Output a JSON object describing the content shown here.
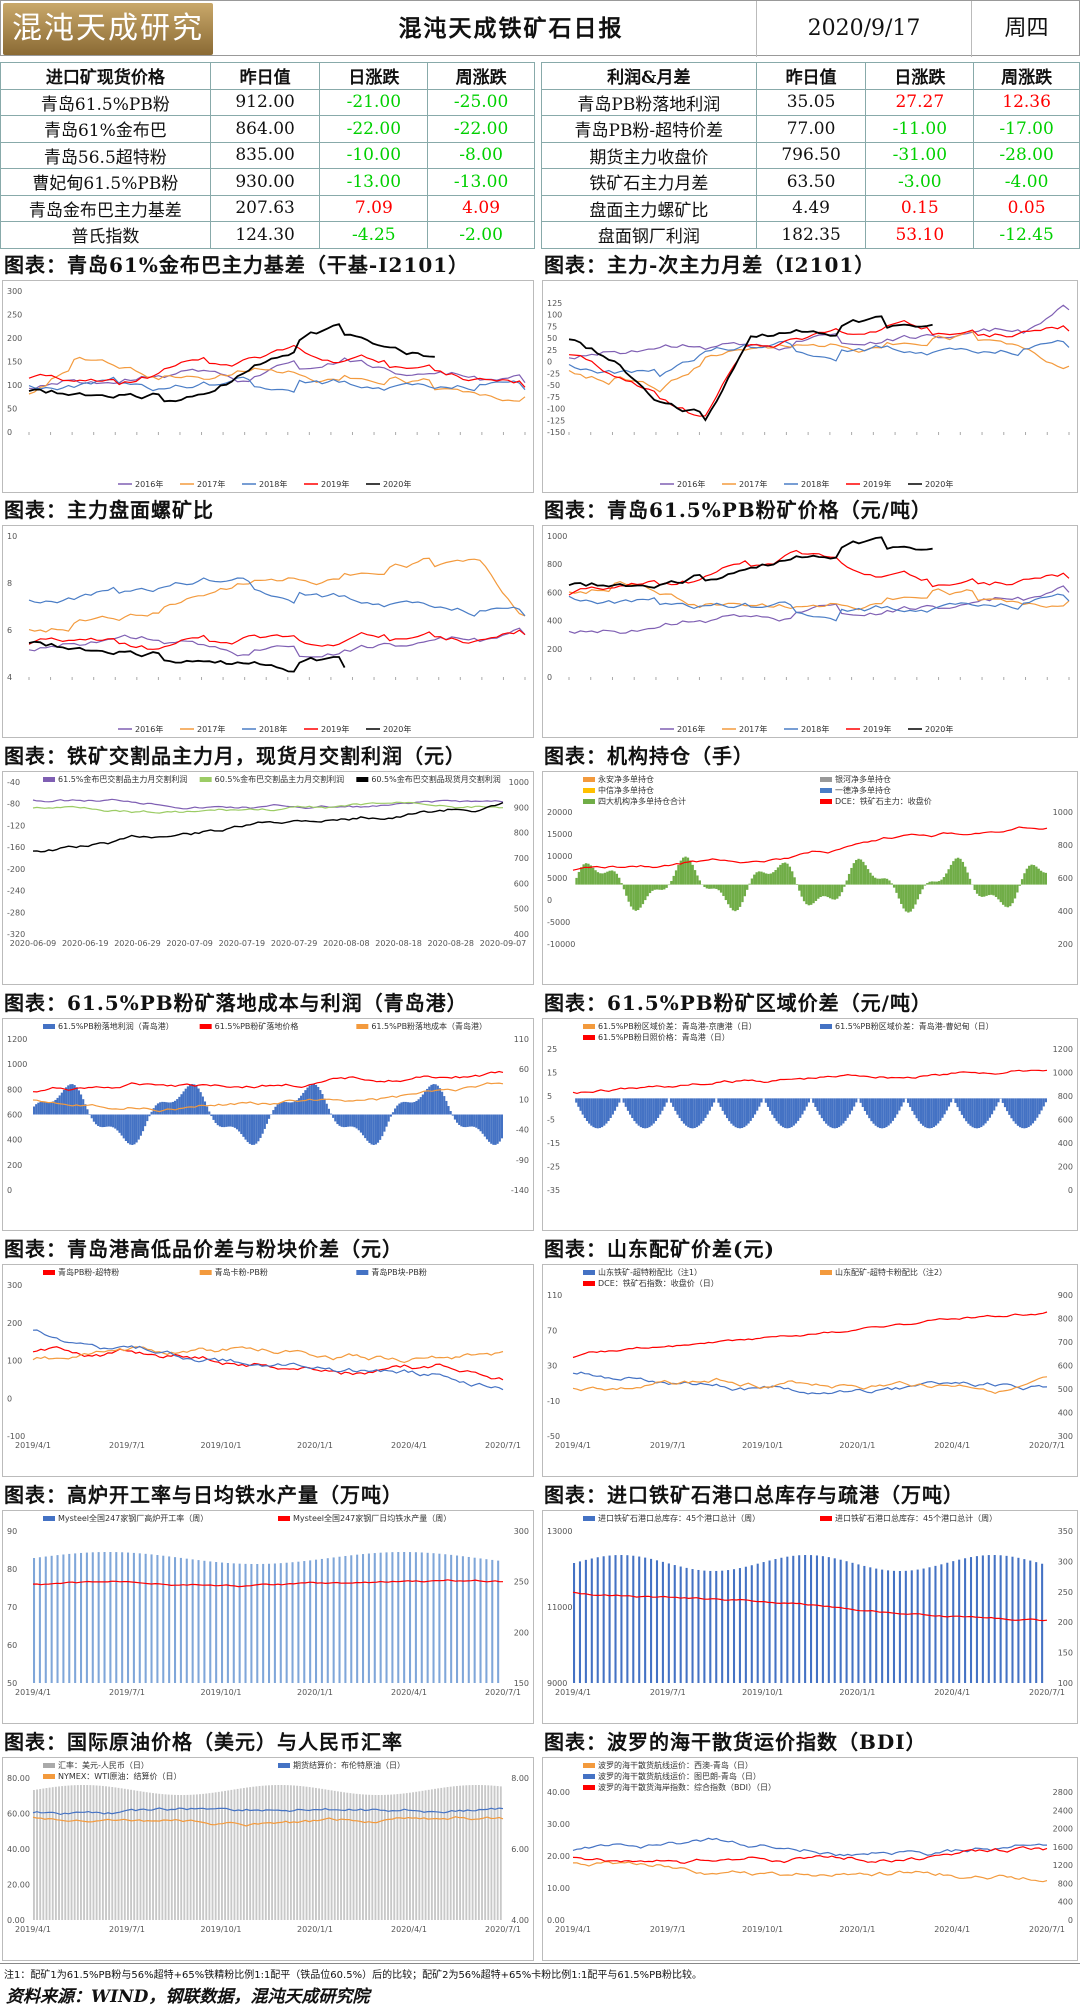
{
  "header": {
    "logo_text": "混沌天成研究院",
    "title": "混沌天成铁矿石日报",
    "date": "2020/9/17",
    "weekday": "周四"
  },
  "left_table": {
    "headers": [
      "进口矿现货价格",
      "昨日值",
      "日涨跌",
      "周涨跌"
    ],
    "rows": [
      {
        "name": "青岛61.5%PB粉",
        "value": "912.00",
        "d": "-21.00",
        "w": "-25.00",
        "ds": "neg",
        "ws": "neg"
      },
      {
        "name": "青岛61%金布巴",
        "value": "864.00",
        "d": "-22.00",
        "w": "-22.00",
        "ds": "neg",
        "ws": "neg"
      },
      {
        "name": "青岛56.5超特粉",
        "value": "835.00",
        "d": "-10.00",
        "w": "-8.00",
        "ds": "neg",
        "ws": "neg"
      },
      {
        "name": "曹妃甸61.5%PB粉",
        "value": "930.00",
        "d": "-13.00",
        "w": "-13.00",
        "ds": "neg",
        "ws": "neg"
      },
      {
        "name": "青岛金布巴主力基差",
        "value": "207.63",
        "d": "7.09",
        "w": "4.09",
        "ds": "pos",
        "ws": "pos"
      },
      {
        "name": "普氏指数",
        "value": "124.30",
        "d": "-4.25",
        "w": "-2.00",
        "ds": "neg",
        "ws": "neg"
      }
    ]
  },
  "right_table": {
    "headers": [
      "利润&月差",
      "昨日值",
      "日涨跌",
      "周涨跌"
    ],
    "rows": [
      {
        "name": "青岛PB粉落地利润",
        "value": "35.05",
        "d": "27.27",
        "w": "12.36",
        "ds": "pos",
        "ws": "pos"
      },
      {
        "name": "青岛PB粉-超特价差",
        "value": "77.00",
        "d": "-11.00",
        "w": "-17.00",
        "ds": "neg",
        "ws": "neg"
      },
      {
        "name": "期货主力收盘价",
        "value": "796.50",
        "d": "-31.00",
        "w": "-28.00",
        "ds": "neg",
        "ws": "neg"
      },
      {
        "name": "铁矿石主力月差",
        "value": "63.50",
        "d": "-3.00",
        "w": "-4.00",
        "ds": "neg",
        "ws": "neg"
      },
      {
        "name": "盘面主力螺矿比",
        "value": "4.49",
        "d": "0.15",
        "w": "0.05",
        "ds": "pos",
        "ws": "pos"
      },
      {
        "name": "盘面钢厂利润",
        "value": "182.35",
        "d": "53.10",
        "w": "-12.45",
        "ds": "pos",
        "ws": "neg"
      }
    ]
  },
  "sections": [
    {
      "title": "图表：青岛61%金布巴主力基差（干基-I2101）"
    },
    {
      "title": "图表：主力-次主力月差（I2101）"
    },
    {
      "title": "图表：主力盘面螺矿比"
    },
    {
      "title": "图表：青岛61.5%PB粉矿价格（元/吨）"
    },
    {
      "title": "图表：铁矿交割品主力月，现货月交割利润（元）"
    },
    {
      "title": "图表：机构持仓（手）"
    },
    {
      "title": "图表：61.5%PB粉矿落地成本与利润（青岛港）"
    },
    {
      "title": "图表：61.5%PB粉矿区域价差（元/吨）"
    },
    {
      "title": "图表：青岛港高低品价差与粉块价差（元）"
    },
    {
      "title": "图表：山东配矿价差(元)"
    },
    {
      "title": "图表：高炉开工率与日均铁水产量（万吨）"
    },
    {
      "title": "图表：进口铁矿石港口总库存与疏港（万吨）"
    },
    {
      "title": "图表：国际原油价格（美元）与人民币汇率"
    },
    {
      "title": "图表：波罗的海干散货运价指数（BDI）"
    }
  ],
  "colors": {
    "neg": "#00d000",
    "pos": "#ff0000",
    "y2016": "#7f5fb3",
    "y2017": "#f39a3d",
    "y2018": "#4a7dc6",
    "y2019": "#ff0000",
    "y2020": "#000000"
  },
  "chart_data": [
    {
      "type": "line",
      "title": "",
      "ylim": [
        0,
        300
      ],
      "yticks": [
        "0",
        "50",
        "100",
        "150",
        "200",
        "250",
        "300"
      ],
      "series": [
        {
          "name": "2016年",
          "values": [
            95,
            110,
            100,
            120,
            130,
            115,
            140,
            160,
            130,
            120,
            115,
            105
          ]
        },
        {
          "name": "2017年",
          "values": [
            80,
            150,
            140,
            120,
            110,
            130,
            125,
            120,
            110,
            95,
            80,
            75
          ]
        },
        {
          "name": "2018年",
          "values": [
            95,
            100,
            105,
            90,
            95,
            100,
            110,
            105,
            100,
            95,
            100,
            90
          ]
        },
        {
          "name": "2019年",
          "values": [
            120,
            110,
            100,
            130,
            150,
            160,
            175,
            145,
            140,
            130,
            110,
            95
          ]
        },
        {
          "name": "2020年",
          "values": [
            90,
            80,
            75,
            70,
            85,
            140,
            190,
            210,
            180,
            160
          ]
        }
      ]
    },
    {
      "type": "line",
      "title": "",
      "ylim": [
        -150,
        150
      ],
      "yticks": [
        "-150",
        "-125",
        "-100",
        "-75",
        "-50",
        "-25",
        "0",
        "25",
        "50",
        "75",
        "100",
        "125"
      ],
      "series": [
        {
          "name": "2016年",
          "values": [
            10,
            20,
            25,
            30,
            35,
            40,
            45,
            50,
            55,
            60,
            65,
            110
          ]
        },
        {
          "name": "2017年",
          "values": [
            -20,
            -40,
            -60,
            10,
            25,
            30,
            35,
            40,
            45,
            50,
            30,
            -10
          ]
        },
        {
          "name": "2018年",
          "values": [
            -10,
            -20,
            -30,
            20,
            25,
            25,
            25,
            30,
            25,
            20,
            25,
            30
          ]
        },
        {
          "name": "2019年",
          "values": [
            20,
            -30,
            -80,
            -120,
            40,
            50,
            60,
            70,
            60,
            55,
            60,
            65
          ]
        },
        {
          "name": "2020年",
          "values": [
            50,
            0,
            -90,
            -120,
            55,
            65,
            70,
            75,
            78
          ]
        }
      ]
    },
    {
      "type": "line",
      "title": "",
      "ylim": [
        4,
        10
      ],
      "yticks": [
        "4",
        "6",
        "8",
        "10"
      ],
      "series": [
        {
          "name": "2016年",
          "values": [
            5.2,
            5.4,
            5.6,
            5.5,
            5.3,
            5.1,
            5.0,
            5.2,
            5.4,
            5.5,
            5.6,
            5.8
          ]
        },
        {
          "name": "2017年",
          "values": [
            6.0,
            6.2,
            6.5,
            7.0,
            7.5,
            8.0,
            8.2,
            8.4,
            8.6,
            8.8,
            9.0,
            6.6
          ]
        },
        {
          "name": "2018年",
          "values": [
            7.2,
            7.4,
            7.6,
            7.8,
            8.0,
            7.8,
            7.6,
            7.4,
            7.2,
            7.0,
            6.8,
            6.6
          ]
        },
        {
          "name": "2019年",
          "values": [
            5.5,
            5.6,
            5.4,
            5.2,
            5.6,
            5.8,
            5.5,
            5.4,
            5.6,
            5.7,
            5.5,
            5.8
          ]
        },
        {
          "name": "2020年",
          "values": [
            5.5,
            5.2,
            5.0,
            4.8,
            4.7,
            4.6,
            4.5,
            4.4
          ]
        }
      ]
    },
    {
      "type": "line",
      "title": "",
      "ylim": [
        0,
        1000
      ],
      "yticks": [
        "0",
        "200",
        "400",
        "600",
        "800",
        "1000"
      ],
      "series": [
        {
          "name": "2016年",
          "values": [
            330,
            320,
            340,
            400,
            430,
            450,
            470,
            480,
            500,
            520,
            560,
            600
          ]
        },
        {
          "name": "2017年",
          "values": [
            600,
            650,
            600,
            520,
            500,
            480,
            520,
            560,
            600,
            560,
            520,
            540
          ]
        },
        {
          "name": "2018年",
          "values": [
            560,
            540,
            520,
            500,
            480,
            470,
            480,
            490,
            500,
            510,
            520,
            540
          ]
        },
        {
          "name": "2019年",
          "values": [
            600,
            640,
            650,
            700,
            800,
            900,
            800,
            700,
            650,
            660,
            680,
            700
          ]
        },
        {
          "name": "2020年",
          "values": [
            660,
            650,
            640,
            700,
            780,
            850,
            900,
            920,
            910
          ]
        }
      ]
    }
  ],
  "mini_legends": {
    "years": [
      "2016年",
      "2017年",
      "2018年",
      "2019年",
      "2020年"
    ],
    "c5": [
      "61.5%金布巴交割品主力月交割利润",
      "60.5%金布巴交割品主力月交割利润",
      "60.5%金布巴交割品现货月交割利润"
    ],
    "c5_axis": [
      "2020-06-09",
      "2020-06-19",
      "2020-06-29",
      "2020-07-09",
      "2020-07-19",
      "2020-07-29",
      "2020-08-08",
      "2020-08-18",
      "2020-08-28",
      "2020-09-07"
    ],
    "c6": [
      "永安净多单持仓",
      "银河净多单持仓",
      "中信净多单持仓",
      "一德净多单持仓",
      "四大机构净多单持仓合计",
      "DCE：铁矿石主力：收盘价"
    ],
    "c7": [
      "61.5%PB粉落地利润（青岛港）",
      "61.5%PB粉矿落地价格",
      "61.5%PB粉落地成本（青岛港）"
    ],
    "c8": [
      "61.5%PB粉区域价差：青岛港-京唐港（日）",
      "61.5%PB粉区域价差：青岛港-曹妃甸（日）",
      "61.5%PB粉日照价格：青岛港（日）"
    ],
    "c9": [
      "青岛PB粉-超特粉",
      "青岛卡粉-PB粉",
      "青岛PB块-PB粉"
    ],
    "c10": [
      "山东铁矿-超特粉配比（注1）",
      "山东配矿-超特卡粉配比（注2）",
      "DCE：铁矿石指数：收盘价（日）"
    ],
    "c11": [
      "Mysteel全国247家钢厂高炉开工率（周）",
      "Mysteel全国247家钢厂日均铁水产量（周）"
    ],
    "c12": [
      "进口铁矿石港口总库存：45个港口总计（周）",
      "进口铁矿石港口总库存：45个港口总计（周）"
    ],
    "c13": [
      "汇率：美元-人民币（日）",
      "期货结算价：布伦特原油（日）",
      "NYMEX：WTI原油：结算价（日）"
    ],
    "c14": [
      "波罗的海干散货航线运价：西澳-青岛（日）",
      "波罗的海干散货航线运价：图巴朗-青岛（日）",
      "波罗的海干散货海岸指数：综合指数（BDI）（日）"
    ]
  },
  "footnote": "注1：配矿1为61.5%PB粉与56%超特+65%铁精粉比例1:1配平（铁品位60.5%）后的比较；配矿2为56%超特+65%卡粉比例1:1配平与61.5%PB粉比较。",
  "source": "资料来源：WIND，钢联数据，混沌天成研究院"
}
